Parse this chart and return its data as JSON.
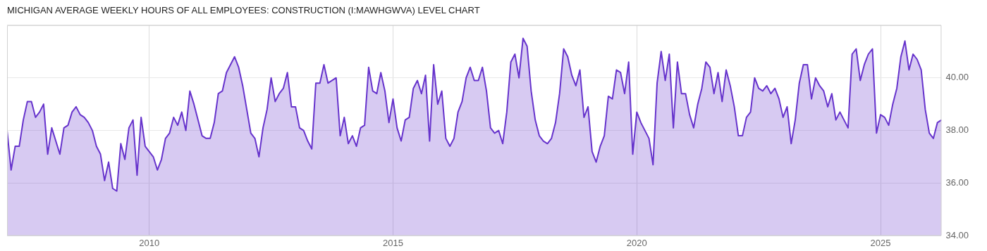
{
  "chart_data": {
    "type": "area",
    "title": "MICHIGAN AVERAGE WEEKLY HOURS OF ALL EMPLOYEES: CONSTRUCTION (I:MAWHGWVA) LEVEL CHART",
    "x": [
      "2007-02",
      "2007-03",
      "2007-04",
      "2007-05",
      "2007-06",
      "2007-07",
      "2007-08",
      "2007-09",
      "2007-10",
      "2007-11",
      "2007-12",
      "2008-01",
      "2008-02",
      "2008-03",
      "2008-04",
      "2008-05",
      "2008-06",
      "2008-07",
      "2008-08",
      "2008-09",
      "2008-10",
      "2008-11",
      "2008-12",
      "2009-01",
      "2009-02",
      "2009-03",
      "2009-04",
      "2009-05",
      "2009-06",
      "2009-07",
      "2009-08",
      "2009-09",
      "2009-10",
      "2009-11",
      "2009-12",
      "2010-01",
      "2010-02",
      "2010-03",
      "2010-04",
      "2010-05",
      "2010-06",
      "2010-07",
      "2010-08",
      "2010-09",
      "2010-10",
      "2010-11",
      "2010-12",
      "2011-01",
      "2011-02",
      "2011-03",
      "2011-04",
      "2011-05",
      "2011-06",
      "2011-07",
      "2011-08",
      "2011-09",
      "2011-10",
      "2011-11",
      "2011-12",
      "2012-01",
      "2012-02",
      "2012-03",
      "2012-04",
      "2012-05",
      "2012-06",
      "2012-07",
      "2012-08",
      "2012-09",
      "2012-10",
      "2012-11",
      "2012-12",
      "2013-01",
      "2013-02",
      "2013-03",
      "2013-04",
      "2013-05",
      "2013-06",
      "2013-07",
      "2013-08",
      "2013-09",
      "2013-10",
      "2013-11",
      "2013-12",
      "2014-01",
      "2014-02",
      "2014-03",
      "2014-04",
      "2014-05",
      "2014-06",
      "2014-07",
      "2014-08",
      "2014-09",
      "2014-10",
      "2014-11",
      "2014-12",
      "2015-01",
      "2015-02",
      "2015-03",
      "2015-04",
      "2015-05",
      "2015-06",
      "2015-07",
      "2015-08",
      "2015-09",
      "2015-10",
      "2015-11",
      "2015-12",
      "2016-01",
      "2016-02",
      "2016-03",
      "2016-04",
      "2016-05",
      "2016-06",
      "2016-07",
      "2016-08",
      "2016-09",
      "2016-10",
      "2016-11",
      "2016-12",
      "2017-01",
      "2017-02",
      "2017-03",
      "2017-04",
      "2017-05",
      "2017-06",
      "2017-07",
      "2017-08",
      "2017-09",
      "2017-10",
      "2017-11",
      "2017-12",
      "2018-01",
      "2018-02",
      "2018-03",
      "2018-04",
      "2018-05",
      "2018-06",
      "2018-07",
      "2018-08",
      "2018-09",
      "2018-10",
      "2018-11",
      "2018-12",
      "2019-01",
      "2019-02",
      "2019-03",
      "2019-04",
      "2019-05",
      "2019-06",
      "2019-07",
      "2019-08",
      "2019-09",
      "2019-10",
      "2019-11",
      "2019-12",
      "2020-01",
      "2020-02",
      "2020-03",
      "2020-04",
      "2020-05",
      "2020-06",
      "2020-07",
      "2020-08",
      "2020-09",
      "2020-10",
      "2020-11",
      "2020-12",
      "2021-01",
      "2021-02",
      "2021-03",
      "2021-04",
      "2021-05",
      "2021-06",
      "2021-07",
      "2021-08",
      "2021-09",
      "2021-10",
      "2021-11",
      "2021-12",
      "2022-01",
      "2022-02",
      "2022-03",
      "2022-04",
      "2022-05",
      "2022-06",
      "2022-07",
      "2022-08",
      "2022-09",
      "2022-10",
      "2022-11",
      "2022-12",
      "2023-01",
      "2023-02",
      "2023-03",
      "2023-04",
      "2023-05",
      "2023-06",
      "2023-07",
      "2023-08",
      "2023-09",
      "2023-10",
      "2023-11",
      "2023-12",
      "2024-01",
      "2024-02",
      "2024-03",
      "2024-04",
      "2024-05",
      "2024-06",
      "2024-07",
      "2024-08",
      "2024-09",
      "2024-10",
      "2024-11",
      "2024-12",
      "2025-01",
      "2025-02",
      "2025-03",
      "2025-04",
      "2025-05",
      "2025-06",
      "2025-07",
      "2025-08",
      "2025-09",
      "2025-10",
      "2025-11",
      "2025-12",
      "2026-01",
      "2026-02",
      "2026-03",
      "2026-04"
    ],
    "series": [
      {
        "color": "#6633cc",
        "values": [
          38.0,
          36.5,
          37.4,
          37.4,
          38.4,
          39.1,
          39.1,
          38.5,
          38.7,
          39.0,
          37.1,
          38.1,
          37.6,
          37.1,
          38.1,
          38.2,
          38.7,
          38.9,
          38.6,
          38.5,
          38.3,
          38.0,
          37.4,
          37.1,
          36.1,
          36.8,
          35.8,
          35.7,
          37.5,
          36.9,
          38.1,
          38.4,
          36.3,
          38.5,
          37.4,
          37.2,
          37.0,
          36.5,
          36.9,
          37.7,
          37.9,
          38.5,
          38.2,
          38.7,
          38.0,
          39.5,
          39.0,
          38.4,
          37.8,
          37.7,
          37.7,
          38.3,
          39.4,
          39.5,
          40.2,
          40.5,
          40.8,
          40.4,
          39.7,
          38.8,
          37.9,
          37.7,
          37.0,
          38.1,
          38.8,
          40.0,
          39.1,
          39.4,
          39.6,
          40.2,
          38.9,
          38.9,
          38.1,
          38.0,
          37.6,
          37.3,
          39.8,
          39.8,
          40.5,
          39.8,
          39.9,
          40.0,
          37.8,
          38.5,
          37.5,
          37.8,
          37.4,
          38.1,
          38.2,
          40.4,
          39.5,
          39.4,
          40.2,
          39.5,
          38.3,
          39.2,
          38.1,
          37.6,
          38.4,
          38.5,
          39.6,
          39.9,
          39.4,
          40.1,
          37.6,
          40.5,
          39.0,
          39.5,
          37.7,
          37.4,
          37.7,
          38.7,
          39.1,
          40.0,
          40.4,
          39.9,
          39.9,
          40.4,
          39.5,
          38.1,
          37.9,
          38.0,
          37.5,
          38.7,
          40.6,
          40.9,
          40.0,
          41.5,
          41.2,
          39.5,
          38.4,
          37.8,
          37.6,
          37.5,
          37.7,
          38.3,
          39.4,
          41.1,
          40.8,
          40.1,
          39.7,
          40.3,
          38.5,
          38.9,
          37.2,
          36.8,
          37.4,
          37.8,
          39.3,
          39.2,
          40.3,
          40.2,
          39.4,
          40.6,
          37.1,
          38.7,
          38.3,
          38.0,
          37.7,
          36.7,
          39.8,
          41.0,
          39.9,
          40.9,
          38.1,
          40.6,
          39.4,
          39.4,
          38.6,
          38.1,
          39.0,
          39.6,
          40.6,
          40.4,
          39.4,
          40.2,
          39.1,
          40.3,
          39.7,
          38.9,
          37.8,
          37.8,
          38.5,
          38.7,
          40.0,
          39.6,
          39.5,
          39.7,
          39.4,
          39.6,
          39.2,
          38.5,
          38.9,
          37.5,
          38.4,
          39.8,
          40.5,
          40.5,
          39.2,
          40.0,
          39.7,
          39.5,
          38.9,
          39.4,
          38.4,
          38.7,
          38.4,
          38.1,
          40.9,
          41.1,
          39.9,
          40.5,
          40.9,
          41.1,
          37.9,
          38.6,
          38.5,
          38.2,
          39.0,
          39.6,
          40.8,
          41.4,
          40.3,
          40.9,
          40.7,
          40.3,
          38.8,
          37.9,
          37.7,
          38.3,
          38.4
        ]
      }
    ],
    "xlim": [
      "2007-02",
      "2026-04"
    ],
    "xticks": [
      "2010",
      "2015",
      "2020",
      "2025"
    ],
    "ylim": [
      34,
      42
    ],
    "yticks": [
      {
        "value": 34,
        "label": "34.00"
      },
      {
        "value": 36,
        "label": "36.00"
      },
      {
        "value": 38,
        "label": "38.00"
      },
      {
        "value": 40,
        "label": "40.00"
      },
      {
        "value": 42,
        "label": null
      }
    ],
    "grid": true,
    "legend": false,
    "marker": "none",
    "line_style": "solid"
  }
}
